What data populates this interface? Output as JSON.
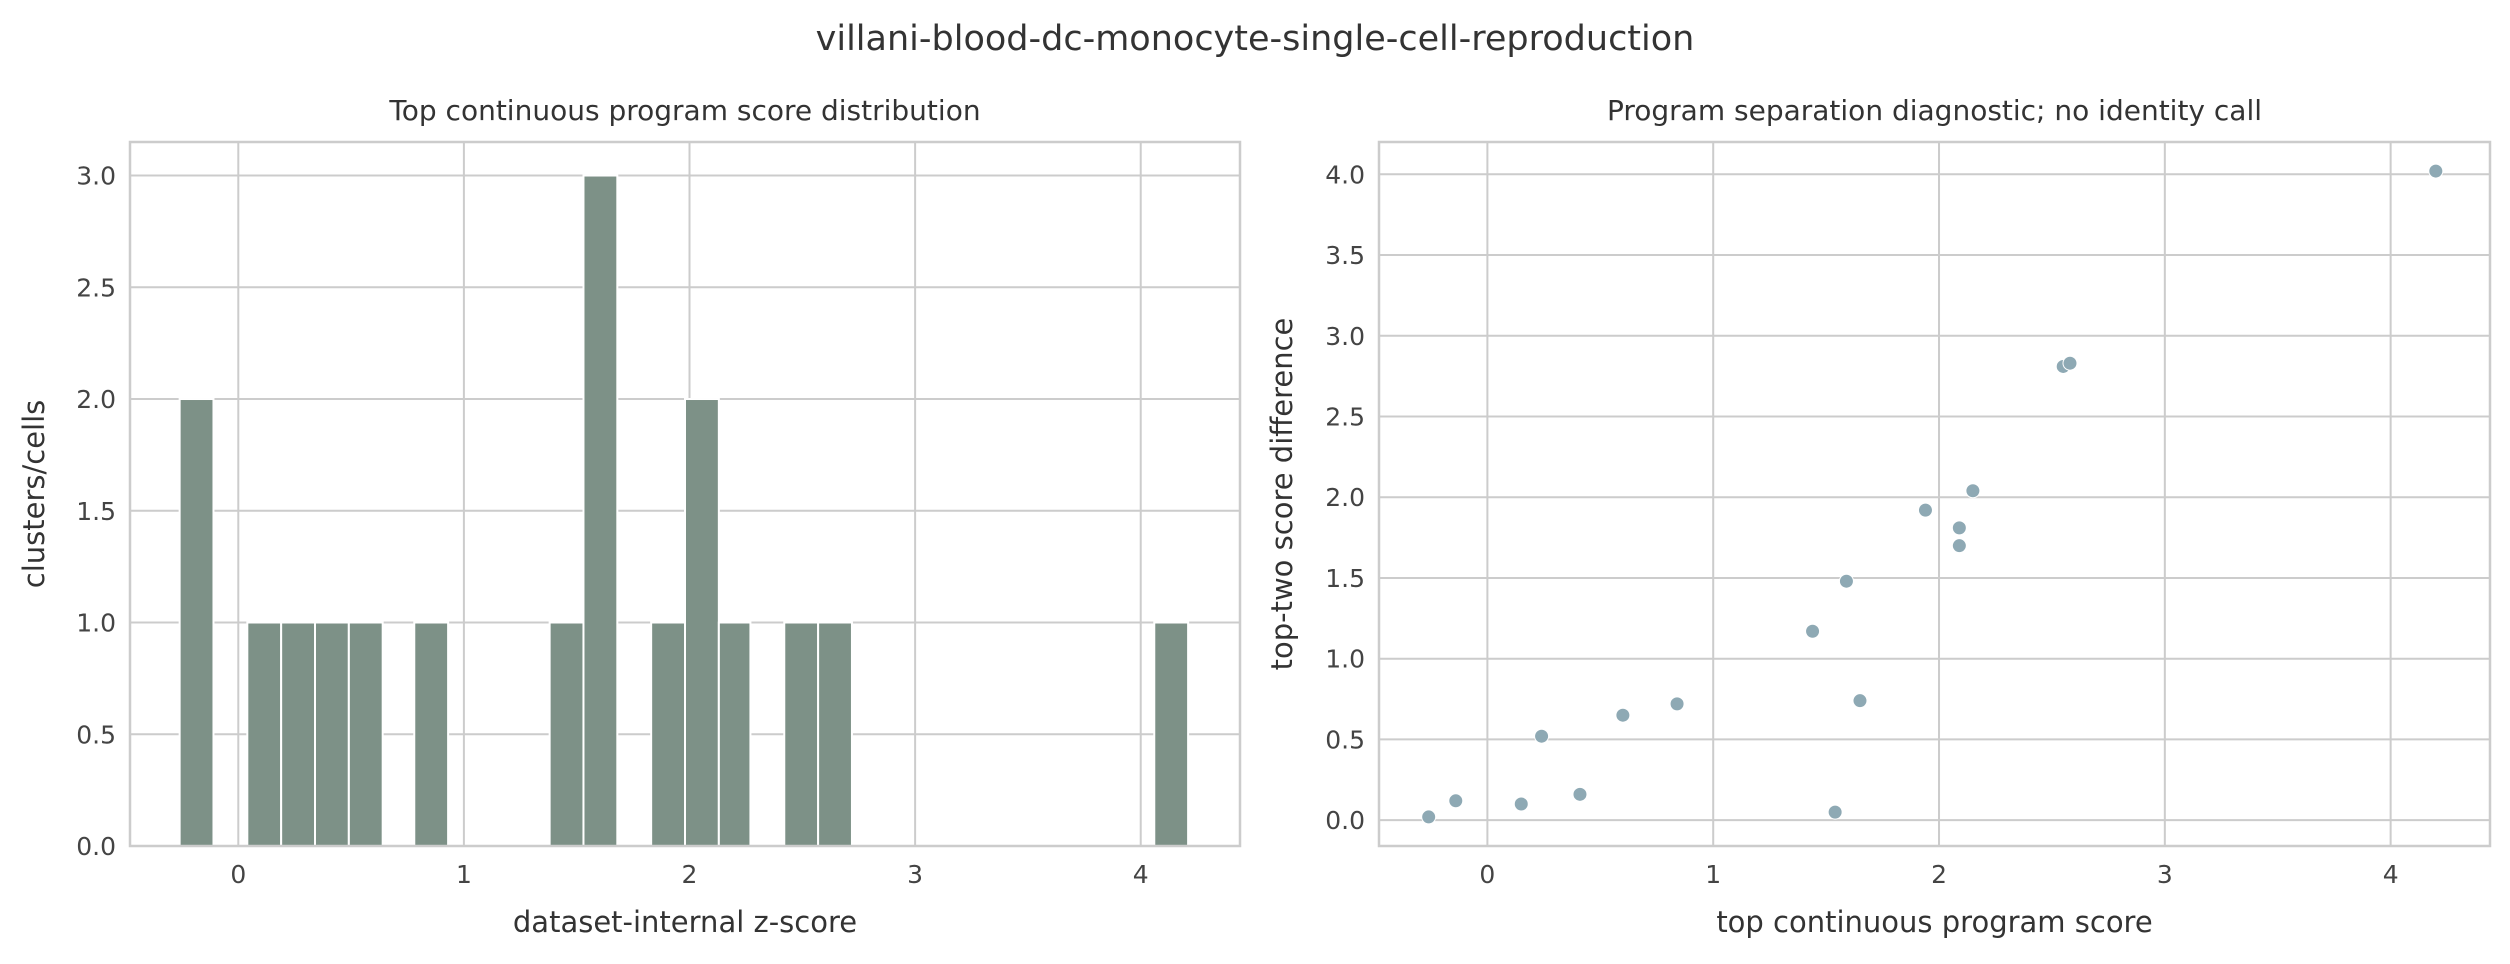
{
  "figure": {
    "suptitle": "villani-blood-dc-monocyte-single-cell-reproduction"
  },
  "chart_data": [
    {
      "type": "bar",
      "title": "Top continuous program score distribution",
      "xlabel": "dataset-internal z-score",
      "ylabel": "clusters/cells",
      "xlim": [
        -0.48,
        4.44
      ],
      "ylim": [
        0,
        3.15
      ],
      "xticks": [
        0,
        1,
        2,
        3,
        4
      ],
      "yticks": [
        0.0,
        0.5,
        1.0,
        1.5,
        2.0,
        2.5,
        3.0
      ],
      "grid": true,
      "legend": "none",
      "bar_color": "#7d9187",
      "bins": [
        {
          "x0": -0.26,
          "x1": -0.11,
          "count": 2
        },
        {
          "x0": 0.04,
          "x1": 0.19,
          "count": 1
        },
        {
          "x0": 0.19,
          "x1": 0.34,
          "count": 1
        },
        {
          "x0": 0.34,
          "x1": 0.49,
          "count": 1
        },
        {
          "x0": 0.49,
          "x1": 0.64,
          "count": 1
        },
        {
          "x0": 0.78,
          "x1": 0.93,
          "count": 1
        },
        {
          "x0": 1.38,
          "x1": 1.53,
          "count": 1
        },
        {
          "x0": 1.53,
          "x1": 1.68,
          "count": 3
        },
        {
          "x0": 1.83,
          "x1": 1.98,
          "count": 1
        },
        {
          "x0": 1.98,
          "x1": 2.13,
          "count": 2
        },
        {
          "x0": 2.13,
          "x1": 2.27,
          "count": 1
        },
        {
          "x0": 2.42,
          "x1": 2.57,
          "count": 1
        },
        {
          "x0": 2.57,
          "x1": 2.72,
          "count": 1
        },
        {
          "x0": 4.06,
          "x1": 4.21,
          "count": 1
        }
      ]
    },
    {
      "type": "scatter",
      "title": "Program separation diagnostic; no identity call",
      "xlabel": "top continuous program score",
      "ylabel": "top-two score difference",
      "xlim": [
        -0.48,
        4.44
      ],
      "ylim": [
        -0.16,
        4.2
      ],
      "xticks": [
        0,
        1,
        2,
        3,
        4
      ],
      "yticks": [
        0.0,
        0.5,
        1.0,
        1.5,
        2.0,
        2.5,
        3.0,
        3.5,
        4.0
      ],
      "grid": true,
      "legend": "none",
      "point_color": "#8ea9b4",
      "points": [
        {
          "x": -0.26,
          "y": 0.02
        },
        {
          "x": -0.14,
          "y": 0.12
        },
        {
          "x": 0.15,
          "y": 0.1
        },
        {
          "x": 0.24,
          "y": 0.52
        },
        {
          "x": 0.41,
          "y": 0.16
        },
        {
          "x": 0.6,
          "y": 0.65
        },
        {
          "x": 0.84,
          "y": 0.72
        },
        {
          "x": 1.44,
          "y": 1.17
        },
        {
          "x": 1.54,
          "y": 0.05
        },
        {
          "x": 1.59,
          "y": 1.48
        },
        {
          "x": 1.65,
          "y": 0.74
        },
        {
          "x": 1.94,
          "y": 1.92
        },
        {
          "x": 2.09,
          "y": 1.81
        },
        {
          "x": 2.09,
          "y": 1.7
        },
        {
          "x": 2.15,
          "y": 2.04
        },
        {
          "x": 2.55,
          "y": 2.81
        },
        {
          "x": 2.58,
          "y": 2.83
        },
        {
          "x": 4.2,
          "y": 4.02
        }
      ]
    }
  ]
}
